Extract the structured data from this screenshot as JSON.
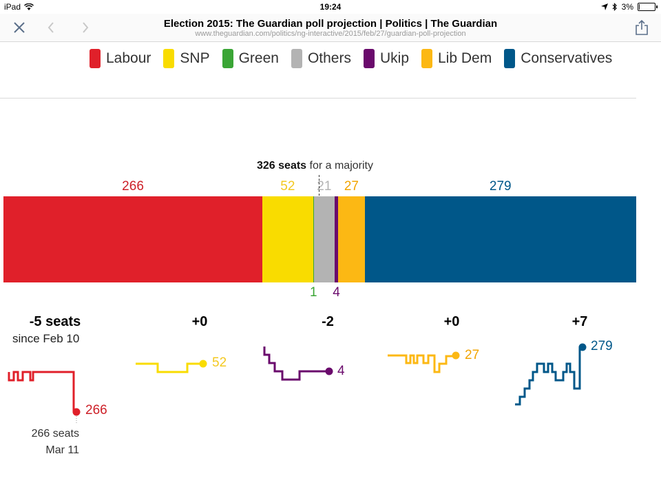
{
  "statusbar": {
    "device": "iPad",
    "time": "19:24",
    "battery": "3%"
  },
  "browser": {
    "title": "Election 2015: The Guardian poll projection | Politics | The Guardian",
    "url": "www.theguardian.com/politics/ng-interactive/2015/feb/27/guardian-poll-projection"
  },
  "legend": [
    {
      "label": "Labour",
      "color": "#e0202a"
    },
    {
      "label": "SNP",
      "color": "#f9dc00"
    },
    {
      "label": "Green",
      "color": "#3aa535"
    },
    {
      "label": "Others",
      "color": "#b3b3b3"
    },
    {
      "label": "Ukip",
      "color": "#6a0a6c"
    },
    {
      "label": "Lib Dem",
      "color": "#fcb814"
    },
    {
      "label": "Conservatives",
      "color": "#005789"
    }
  ],
  "chart_data": {
    "type": "bar",
    "majority_label_bold": "326 seats",
    "majority_label_rest": "for a majority",
    "majority_value": 326,
    "total_seats": 650,
    "segments": [
      {
        "party": "Labour",
        "seats": 266,
        "label": "266",
        "color": "#e0202a",
        "label_color": "#cd2028"
      },
      {
        "party": "SNP",
        "seats": 52,
        "label": "52",
        "color": "#f9dc00",
        "label_color": "#f3c820"
      },
      {
        "party": "Green",
        "seats": 1,
        "label": "1",
        "color": "#3aa535",
        "label_color": "#3aa535"
      },
      {
        "party": "Others",
        "seats": 21,
        "label": "21",
        "color": "#b3b3b3",
        "label_color": "#b3b3b3"
      },
      {
        "party": "Ukip",
        "seats": 4,
        "label": "4",
        "color": "#6a0a6c",
        "label_color": "#6a0a6c"
      },
      {
        "party": "Lib Dem",
        "seats": 27,
        "label": "27",
        "color": "#fcb814",
        "label_color": "#f2a400"
      },
      {
        "party": "Conservatives",
        "seats": 279,
        "label": "279",
        "color": "#005789",
        "label_color": "#005789"
      }
    ],
    "changes": [
      {
        "party": "Labour",
        "change": "-5 seats",
        "end_value": "266"
      },
      {
        "party": "SNP",
        "change": "+0",
        "end_value": "52"
      },
      {
        "party": "Ukip",
        "change": "-2",
        "end_value": "4"
      },
      {
        "party": "Lib Dem",
        "change": "+0",
        "end_value": "27"
      },
      {
        "party": "Conservatives",
        "change": "+7",
        "end_value": "279"
      }
    ],
    "since_label": "since Feb 10",
    "note_line1": "266 seats",
    "note_line2": "Mar 11"
  }
}
